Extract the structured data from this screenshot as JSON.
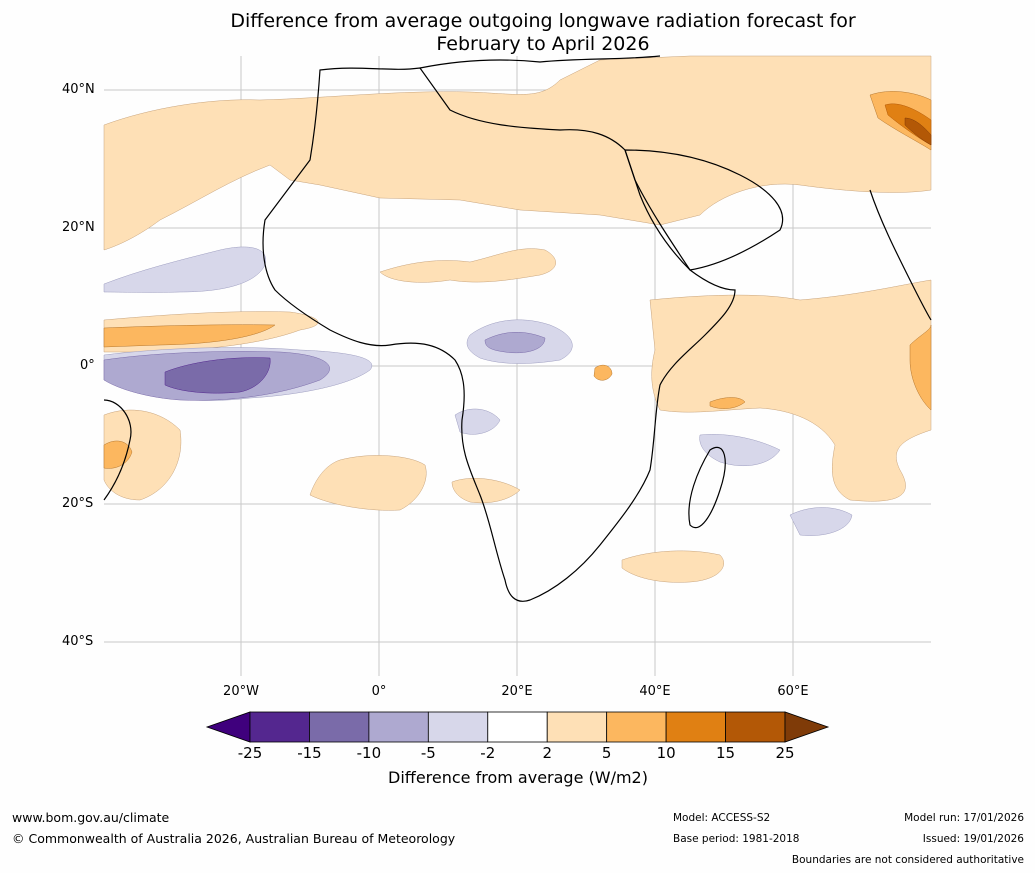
{
  "title_line1": "Difference from average outgoing longwave radiation forecast for",
  "title_line2": "February to April 2026",
  "lat_labels": [
    "40°N",
    "20°N",
    "0°",
    "20°S",
    "40°S"
  ],
  "lon_labels": [
    "20°W",
    "0°",
    "20°E",
    "40°E",
    "60°E"
  ],
  "colorbar": {
    "ticks": [
      "-25",
      "-15",
      "-10",
      "-5",
      "-2",
      "2",
      "5",
      "10",
      "15",
      "25"
    ],
    "colors": [
      "#3f007d",
      "#54278f",
      "#7a6ba9",
      "#aea9d0",
      "#d7d7ea",
      "#ffffff",
      "#fee0b6",
      "#fcb75f",
      "#e08013",
      "#b35806",
      "#7f3b08"
    ],
    "title": "Difference from average (W/m2)"
  },
  "footer": {
    "url": "www.bom.gov.au/climate",
    "copyright": "© Commonwealth of Australia 2026, Australian Bureau of Meteorology",
    "model": "Model: ACCESS-S2",
    "base_period": "Base period: 1981-2018",
    "model_run": "Model run: 17/01/2026",
    "issued": "Issued: 19/01/2026",
    "disclaimer": "Boundaries are not considered authoritative"
  }
}
